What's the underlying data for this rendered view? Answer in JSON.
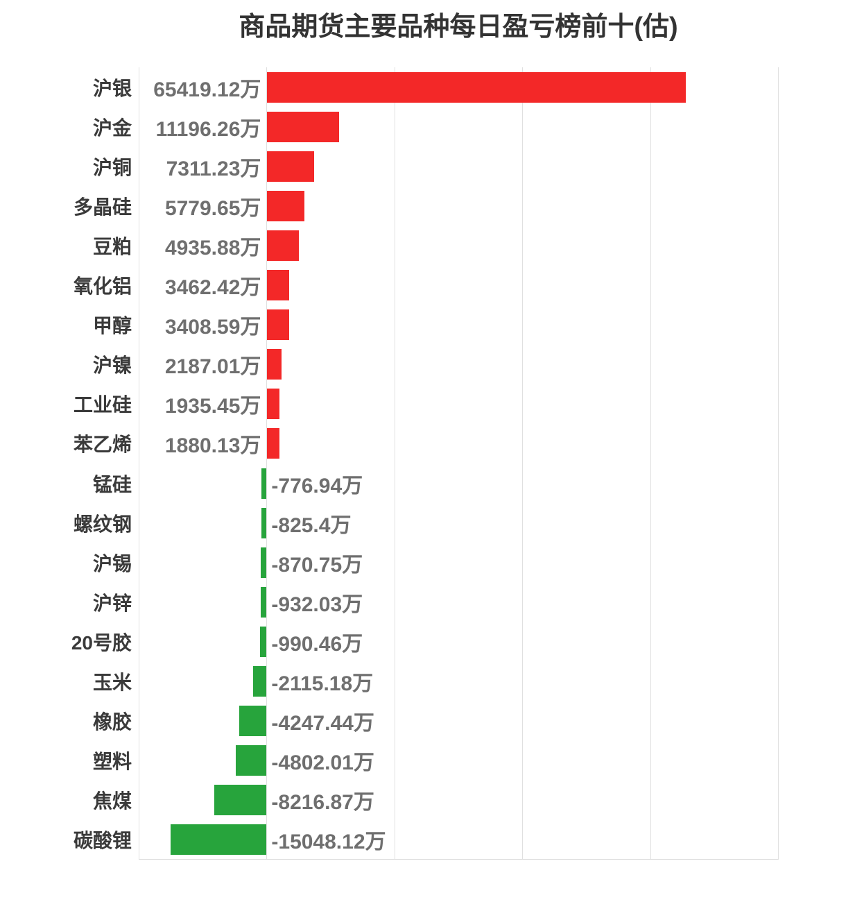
{
  "chart_data": {
    "type": "bar",
    "orientation": "horizontal",
    "title": "商品期货主要品种每日盈亏榜前十(估)",
    "unit": "万",
    "categories": [
      "沪银",
      "沪金",
      "沪铜",
      "多晶硅",
      "豆粕",
      "氧化铝",
      "甲醇",
      "沪镍",
      "工业硅",
      "苯乙烯",
      "锰硅",
      "螺纹钢",
      "沪锡",
      "沪锌",
      "20号胶",
      "玉米",
      "橡胶",
      "塑料",
      "焦煤",
      "碳酸锂"
    ],
    "values": [
      65419.12,
      11196.26,
      7311.23,
      5779.65,
      4935.88,
      3462.42,
      3408.59,
      2187.01,
      1935.45,
      1880.13,
      -776.94,
      -825.4,
      -870.75,
      -932.03,
      -990.46,
      -2115.18,
      -4247.44,
      -4802.01,
      -8216.87,
      -15048.12
    ],
    "value_labels": [
      "65419.12万",
      "11196.26万",
      "7311.23万",
      "5779.65万",
      "4935.88万",
      "3462.42万",
      "3408.59万",
      "2187.01万",
      "1935.45万",
      "1880.13万",
      "-776.94万",
      "-825.4万",
      "-870.75万",
      "-932.03万",
      "-990.46万",
      "-2115.18万",
      "-4247.44万",
      "-4802.01万",
      "-8216.87万",
      "-15048.12万"
    ],
    "xlim": [
      -20000,
      80000
    ],
    "grid_interval": 20000,
    "grid": true,
    "legend": false,
    "xlabel": "",
    "ylabel": "",
    "colors": {
      "positive_bar": "#f32828",
      "negative_bar": "#27a43c",
      "gridline": "#e0e0e0",
      "title_text": "#333333",
      "category_text": "#3a3a3a",
      "value_text": "#6f6f6f"
    }
  }
}
